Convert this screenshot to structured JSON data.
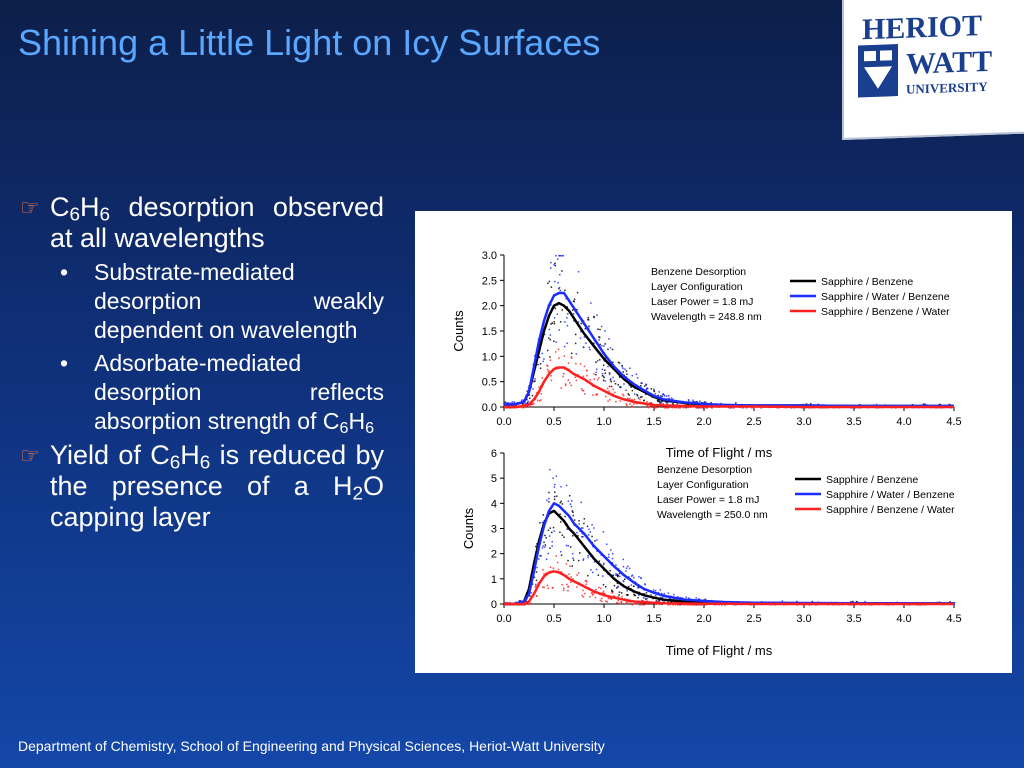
{
  "slide": {
    "title": "Shining a Little Light on Icy Surfaces",
    "footer": "Department of Chemistry, School of Engineering and Physical Sciences, Heriot-Watt University",
    "logo": {
      "line1": "HERIOT",
      "line2": "WATT",
      "line3": "UNIVERSITY"
    }
  },
  "bullets": {
    "b1_formula": "C6H6",
    "b1_text": "desorption observed at all wavelengths",
    "sub1": "Substrate-mediated desorption weakly dependent on wavelength",
    "sub2_text": "Adsorbate-mediated desorption reflects absorption strength of",
    "sub2_formula": "C6H6",
    "b2_pre": "Yield of",
    "b2_formula": "C6H6",
    "b2_mid": "is reduced by the presence of a",
    "b2_formula2": "H2O",
    "b2_post": "capping layer"
  },
  "colors": {
    "title": "#5aa7ff",
    "bullet_marker": "#ff7b3a"
  },
  "chart_data": [
    {
      "type": "line",
      "xlabel": "Time of Flight / ms",
      "ylabel": "Counts",
      "xlim": [
        0.0,
        4.5
      ],
      "ylim": [
        0.0,
        3.0
      ],
      "xticks": [
        "0.0",
        "0.5",
        "1.0",
        "1.5",
        "2.0",
        "2.5",
        "3.0",
        "3.5",
        "4.0",
        "4.5"
      ],
      "yticks": [
        "0.0",
        "0.5",
        "1.0",
        "1.5",
        "2.0",
        "2.5",
        "3.0"
      ],
      "legend_position": "top-right",
      "annotation": [
        "Benzene Desorption",
        "Layer Configuration",
        "Laser Power = 1.8 mJ",
        "Wavelength = 248.8 nm"
      ],
      "x": [
        0.0,
        0.1,
        0.2,
        0.25,
        0.3,
        0.35,
        0.4,
        0.45,
        0.5,
        0.55,
        0.6,
        0.65,
        0.7,
        0.8,
        0.9,
        1.0,
        1.1,
        1.2,
        1.3,
        1.4,
        1.5,
        1.6,
        1.8,
        2.0,
        2.2,
        2.5,
        3.0,
        3.5,
        4.0,
        4.5
      ],
      "series": [
        {
          "name": "Sapphire / Benzene",
          "color": "#000000",
          "values": [
            0.05,
            0.05,
            0.1,
            0.3,
            0.7,
            1.1,
            1.5,
            1.8,
            2.0,
            2.05,
            2.0,
            1.9,
            1.75,
            1.45,
            1.2,
            0.95,
            0.75,
            0.55,
            0.4,
            0.3,
            0.2,
            0.13,
            0.08,
            0.05,
            0.04,
            0.03,
            0.03,
            0.02,
            0.02,
            0.02
          ]
        },
        {
          "name": "Sapphire / Water / Benzene",
          "color": "#1a2cff",
          "values": [
            0.05,
            0.05,
            0.1,
            0.3,
            0.8,
            1.3,
            1.7,
            2.0,
            2.2,
            2.25,
            2.25,
            2.1,
            1.95,
            1.65,
            1.35,
            1.05,
            0.8,
            0.6,
            0.45,
            0.33,
            0.22,
            0.15,
            0.09,
            0.06,
            0.04,
            0.03,
            0.03,
            0.02,
            0.02,
            0.02
          ]
        },
        {
          "name": "Sapphire / Benzene / Water",
          "color": "#ff2020",
          "values": [
            0.0,
            0.0,
            0.02,
            0.05,
            0.15,
            0.3,
            0.5,
            0.65,
            0.75,
            0.78,
            0.78,
            0.72,
            0.65,
            0.55,
            0.42,
            0.32,
            0.22,
            0.15,
            0.1,
            0.07,
            0.04,
            0.03,
            0.02,
            0.01,
            0.01,
            0.01,
            0.0,
            0.0,
            0.0,
            0.0
          ]
        }
      ]
    },
    {
      "type": "line",
      "xlabel": "Time of Flight / ms",
      "ylabel": "Counts",
      "xlim": [
        0.0,
        4.5
      ],
      "ylim": [
        0.0,
        6.0
      ],
      "xticks": [
        "0.0",
        "0.5",
        "1.0",
        "1.5",
        "2.0",
        "2.5",
        "3.0",
        "3.5",
        "4.0",
        "4.5"
      ],
      "yticks": [
        "0",
        "1",
        "2",
        "3",
        "4",
        "5",
        "6"
      ],
      "legend_position": "top-right",
      "annotation": [
        "Benzene Desorption",
        "Layer Configuration",
        "Laser Power = 1.8 mJ",
        "Wavelength = 250.0 nm"
      ],
      "x": [
        0.0,
        0.1,
        0.2,
        0.25,
        0.3,
        0.35,
        0.4,
        0.45,
        0.5,
        0.55,
        0.6,
        0.65,
        0.7,
        0.8,
        0.9,
        1.0,
        1.1,
        1.2,
        1.3,
        1.4,
        1.5,
        1.6,
        1.8,
        2.0,
        2.2,
        2.5,
        3.0,
        3.5,
        4.0,
        4.5
      ],
      "series": [
        {
          "name": "Sapphire / Benzene",
          "color": "#000000",
          "values": [
            0.0,
            0.0,
            0.1,
            0.6,
            1.6,
            2.5,
            3.2,
            3.6,
            3.7,
            3.5,
            3.3,
            3.0,
            2.8,
            2.3,
            1.8,
            1.4,
            1.0,
            0.7,
            0.5,
            0.35,
            0.25,
            0.17,
            0.1,
            0.07,
            0.05,
            0.04,
            0.03,
            0.03,
            0.02,
            0.02
          ]
        },
        {
          "name": "Sapphire / Water / Benzene",
          "color": "#1a2cff",
          "values": [
            0.0,
            0.0,
            0.1,
            0.4,
            1.3,
            2.3,
            3.1,
            3.7,
            4.0,
            3.9,
            3.7,
            3.5,
            3.2,
            2.8,
            2.3,
            1.9,
            1.5,
            1.15,
            0.85,
            0.6,
            0.45,
            0.32,
            0.18,
            0.12,
            0.08,
            0.05,
            0.04,
            0.03,
            0.03,
            0.02
          ]
        },
        {
          "name": "Sapphire / Benzene / Water",
          "color": "#ff2020",
          "values": [
            0.0,
            0.0,
            0.0,
            0.1,
            0.4,
            0.8,
            1.1,
            1.25,
            1.3,
            1.25,
            1.15,
            1.0,
            0.9,
            0.7,
            0.5,
            0.35,
            0.25,
            0.17,
            0.1,
            0.07,
            0.05,
            0.03,
            0.02,
            0.01,
            0.01,
            0.0,
            0.0,
            0.0,
            0.0,
            0.0
          ]
        }
      ]
    }
  ]
}
